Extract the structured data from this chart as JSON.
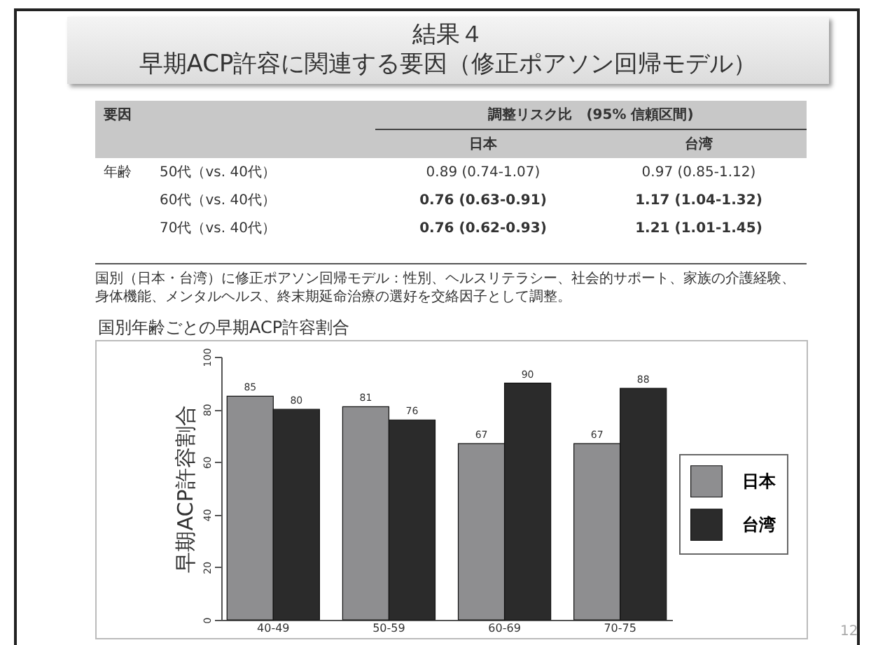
{
  "chart_data": [
    {
      "type": "other",
      "title": "結果４",
      "subtitle": "早期ACP許容に関連する要因（修正ポアソン回帰モデル）",
      "annotations": [
        "要因",
        "調整リスク比　(95% 信頼区間)",
        "日本",
        "台湾",
        "年齢",
        "50代（vs. 40代）",
        "0.89 (0.74-1.07)",
        "0.97 (0.85-1.12)",
        "60代（vs. 40代）",
        "0.76 (0.63-0.91)",
        "1.17 (1.04-1.32)",
        "70代（vs. 40代）",
        "0.76 (0.62-0.93)",
        "1.21 (1.01-1.45)",
        "国別（日本・台湾）に修正ポアソン回帰モデル：性別、ヘルスリテラシー、社会的サポート、家族の介護経験、身体機能、メンタルヘルス、終末期延命治療の選好を交絡因子として調整。",
        "12"
      ]
    },
    {
      "type": "bar",
      "title": "国別年齢ごとの早期ACP許容割合",
      "ylabel": "早期ACP許容割合",
      "categories": [
        "40-49",
        "50-59",
        "60-69",
        "70-75"
      ],
      "series": [
        {
          "name": "日本",
          "color": "#8e8e90",
          "values": [
            85,
            81,
            67,
            67
          ]
        },
        {
          "name": "台湾",
          "color": "#2b2b2b",
          "values": [
            80,
            76,
            90,
            88
          ]
        }
      ],
      "ylim": [
        0,
        100
      ],
      "yticks": [
        0,
        20,
        40,
        60,
        80,
        100
      ],
      "data_labels": true,
      "legend": "right",
      "grid": false
    }
  ]
}
